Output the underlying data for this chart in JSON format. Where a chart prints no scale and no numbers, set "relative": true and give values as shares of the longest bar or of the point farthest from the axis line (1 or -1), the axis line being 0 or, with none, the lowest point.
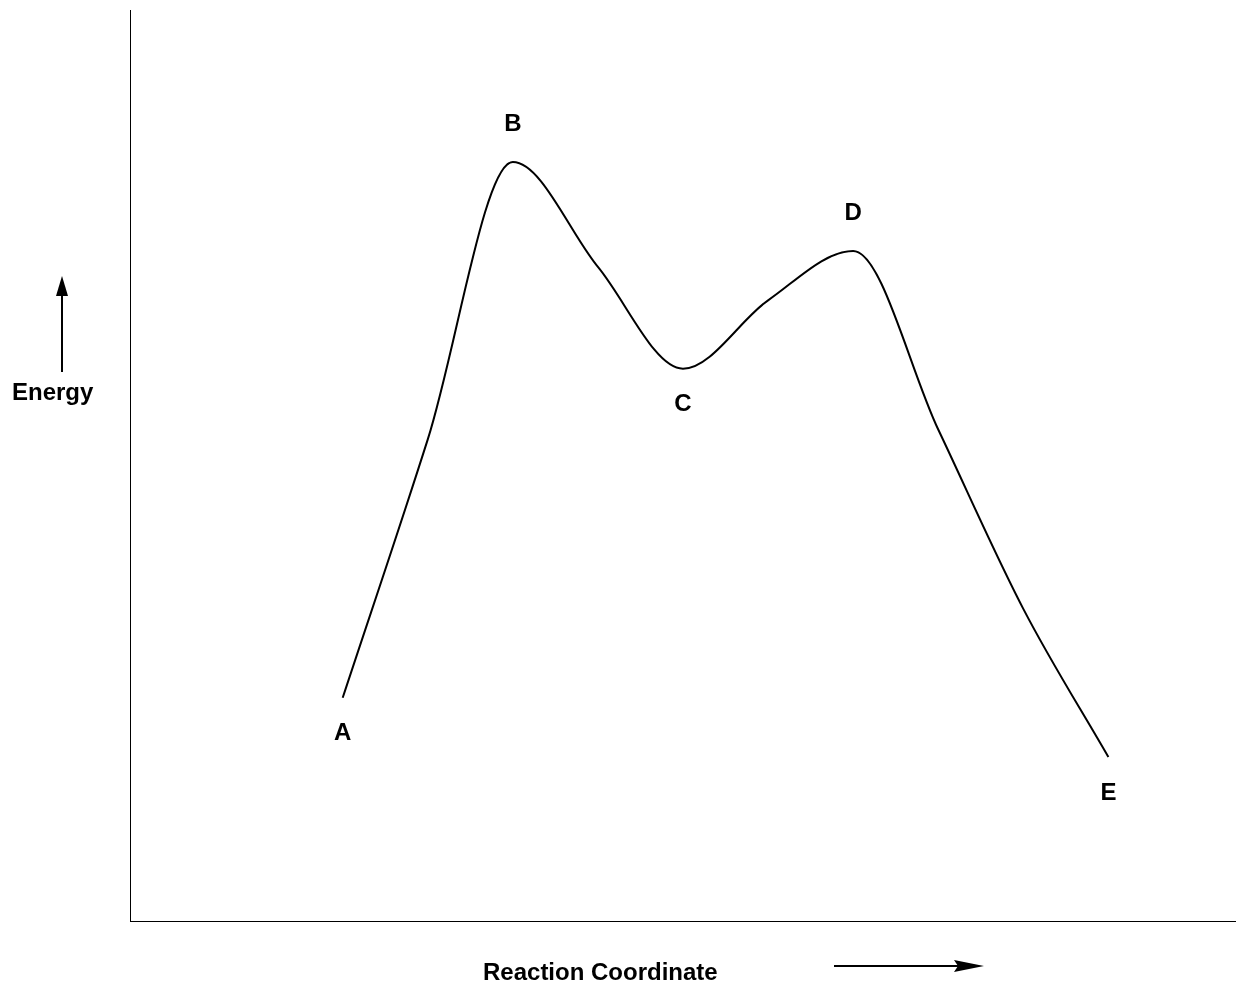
{
  "chart_data": {
    "type": "line",
    "relative": true,
    "xlabel": "Reaction Coordinate",
    "ylabel": "Energy",
    "categories": [
      null,
      null,
      null,
      null,
      null,
      null,
      null,
      null,
      null,
      null,
      null,
      null,
      null
    ],
    "series": [
      {
        "color": "#000000",
        "values": [
          null,
          null,
          0.295,
          0.635,
          1,
          0.862,
          0.728,
          0.818,
          0.883,
          0.648,
          0.412,
          0.217,
          null
        ]
      }
    ],
    "annotations": [
      {
        "text": "A",
        "y": 0.295
      },
      {
        "text": "B",
        "y": 1
      },
      {
        "text": "C",
        "y": 0.728
      },
      {
        "text": "D",
        "y": 0.883
      },
      {
        "text": "E",
        "y": 0.217
      }
    ],
    "marker": "none",
    "grid": false,
    "legend": false
  }
}
